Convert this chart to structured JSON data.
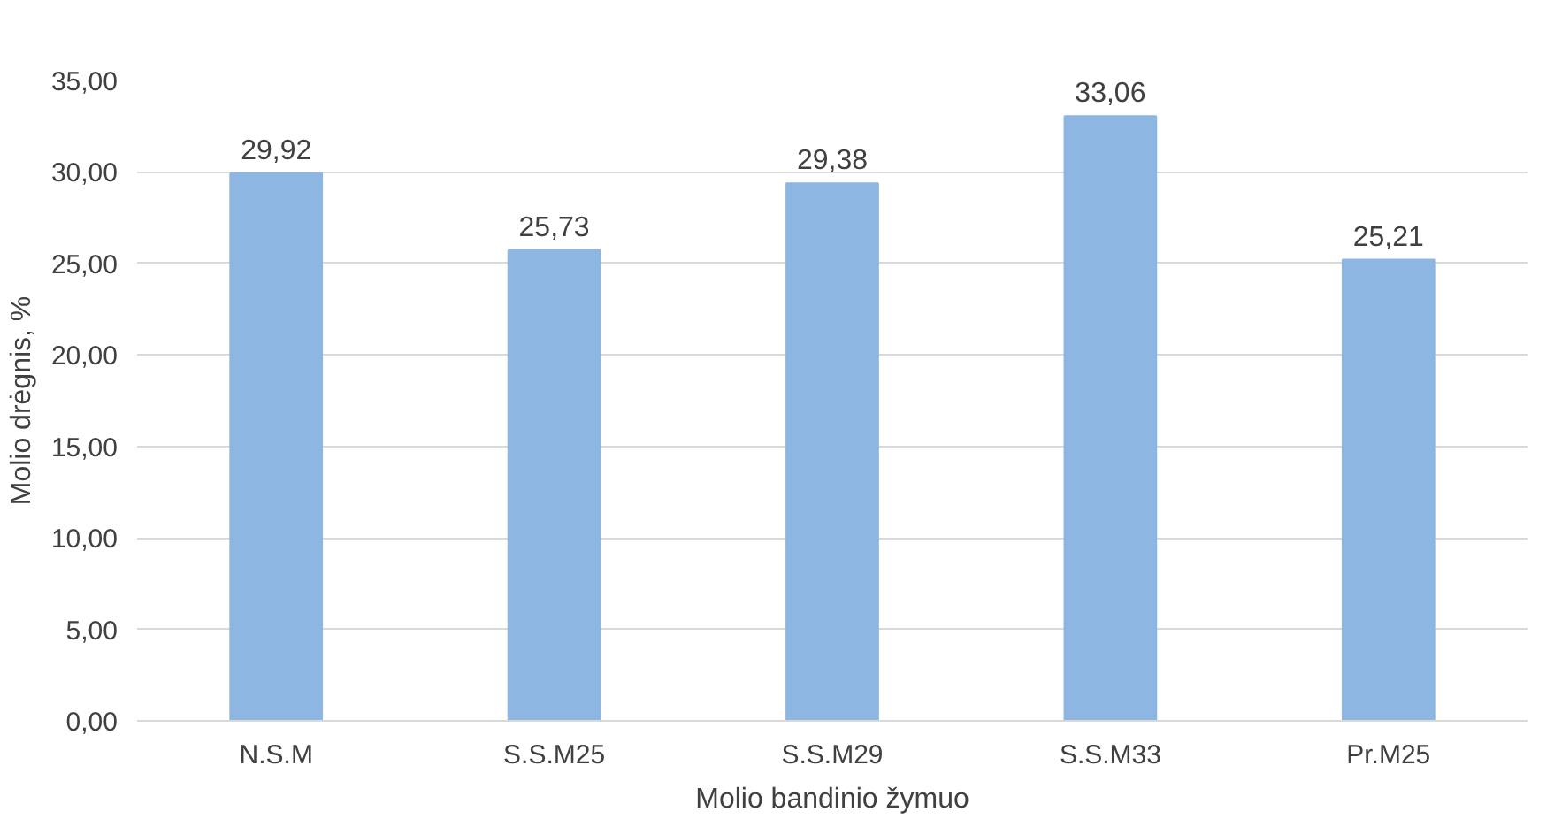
{
  "chart_data": {
    "type": "bar",
    "xlabel": "Molio bandinio žymuo",
    "ylabel": "Molio drėgnis, %",
    "categories": [
      "N.S.M",
      "S.S.M25",
      "S.S.M29",
      "S.S.M33",
      "Pr.M25"
    ],
    "values": [
      29.92,
      25.73,
      29.38,
      33.06,
      25.21
    ],
    "value_labels": [
      "29,92",
      "25,73",
      "29,38",
      "33,06",
      "25,21"
    ],
    "color": "#8db6e2",
    "ylim": [
      0,
      35
    ],
    "yticks": [
      {
        "value": 0,
        "label": "0,00"
      },
      {
        "value": 5,
        "label": "5,00"
      },
      {
        "value": 10,
        "label": "10,00"
      },
      {
        "value": 15,
        "label": "15,00"
      },
      {
        "value": 20,
        "label": "20,00"
      },
      {
        "value": 25,
        "label": "25,00"
      },
      {
        "value": 30,
        "label": "30,00"
      },
      {
        "value": 35,
        "label": "35,00"
      }
    ],
    "grid": "y"
  }
}
